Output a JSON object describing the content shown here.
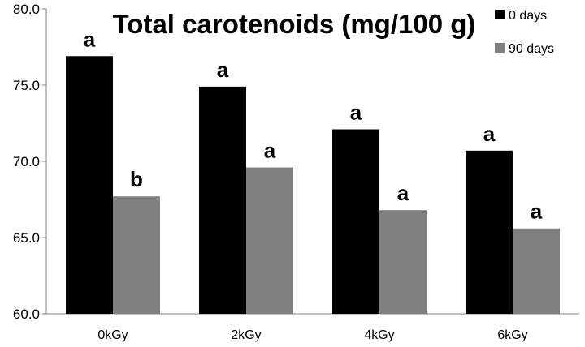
{
  "chart_data": {
    "type": "bar",
    "title": "Total carotenoids (mg/100 g)",
    "categories": [
      "0kGy",
      "2kGy",
      "4kGy",
      "6kGy"
    ],
    "series": [
      {
        "name": "0 days",
        "values": [
          76.9,
          74.9,
          72.1,
          70.7
        ],
        "labels": [
          "a",
          "a",
          "a",
          "a"
        ],
        "color": "#000000"
      },
      {
        "name": "90 days",
        "values": [
          67.7,
          69.6,
          66.8,
          65.6
        ],
        "labels": [
          "b",
          "a",
          "a",
          "a"
        ],
        "color": "#808080"
      }
    ],
    "yticks": [
      "60.0",
      "65.0",
      "70.0",
      "75.0",
      "80.0"
    ],
    "ylim": [
      60,
      80
    ],
    "legend_position": "top-right",
    "grid": false
  }
}
